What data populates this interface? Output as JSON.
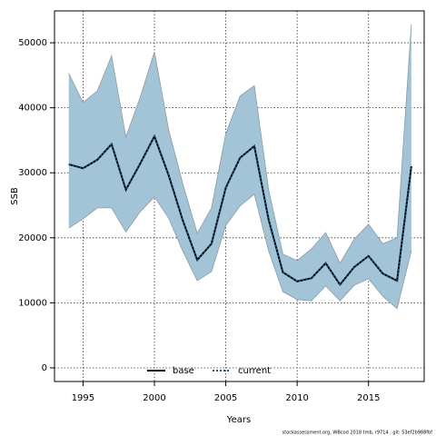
{
  "chart_data": {
    "type": "line",
    "ylabel": "SSB",
    "xlabel": "Years",
    "footer": "stockassessment.org, WBcod 2018 tmb, r9714 , git: 53ef2b988fbf",
    "x": [
      1994,
      1995,
      1996,
      1997,
      1998,
      1999,
      2000,
      2001,
      2002,
      2003,
      2004,
      2005,
      2006,
      2007,
      2008,
      2009,
      2010,
      2011,
      2012,
      2013,
      2014,
      2015,
      2016,
      2017,
      2018
    ],
    "band": {
      "color": "#a3c4d6",
      "upper": [
        45300,
        40800,
        42600,
        48000,
        35500,
        41600,
        48600,
        36600,
        28200,
        20700,
        24600,
        36000,
        41800,
        43400,
        27400,
        17500,
        16500,
        18300,
        20800,
        16100,
        19800,
        22100,
        19100,
        20000,
        52800
      ],
      "lower": [
        21500,
        22900,
        24600,
        24600,
        20900,
        24000,
        26300,
        23000,
        17900,
        13400,
        14800,
        21900,
        24900,
        26700,
        18000,
        11700,
        10500,
        10300,
        12600,
        10300,
        12700,
        13700,
        11000,
        9100,
        18000
      ]
    },
    "series": [
      {
        "name": "base",
        "color": "#000000",
        "dash": false,
        "values": [
          31300,
          30700,
          32000,
          34400,
          27400,
          31400,
          35600,
          29600,
          22600,
          16600,
          19100,
          27700,
          32300,
          34100,
          22800,
          14700,
          13300,
          13800,
          16100,
          12800,
          15500,
          17200,
          14500,
          13400,
          31000
        ]
      },
      {
        "name": "current",
        "color": "#1f4e79",
        "dash": true,
        "values": [
          31300,
          30700,
          32000,
          34400,
          27400,
          31400,
          35600,
          29600,
          22600,
          16600,
          19100,
          27700,
          32300,
          34100,
          22800,
          14700,
          13300,
          13800,
          16100,
          12800,
          15500,
          17200,
          14500,
          13400,
          31000
        ]
      }
    ],
    "xlim": [
      1993,
      2018.9
    ],
    "ylim": [
      -2100,
      54900
    ],
    "xticks": [
      1995,
      2000,
      2005,
      2010,
      2015
    ],
    "yticks": [
      0,
      10000,
      20000,
      30000,
      40000,
      50000
    ],
    "grid": true,
    "legend": "bottom"
  }
}
